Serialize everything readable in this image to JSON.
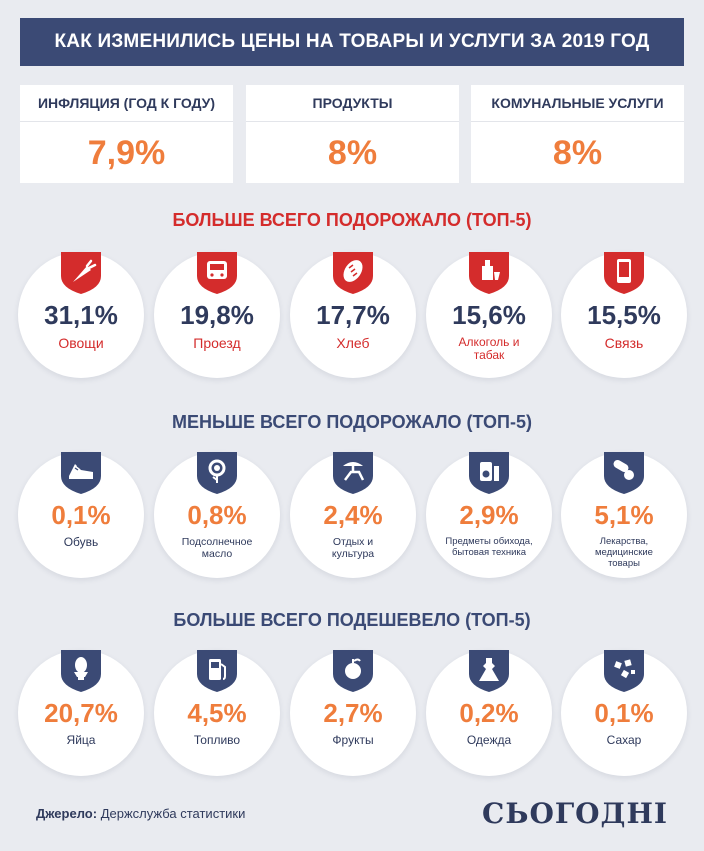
{
  "title": "КАК ИЗМЕНИЛИСЬ ЦЕНЫ НА ТОВАРЫ И УСЛУГИ ЗА 2019 ГОД",
  "stats": [
    {
      "label": "ИНФЛЯЦИЯ (ГОД К ГОДУ)",
      "value": "7,9%"
    },
    {
      "label": "ПРОДУКТЫ",
      "value": "8%"
    },
    {
      "label": "КОМУНАЛЬНЫЕ УСЛУГИ",
      "value": "8%"
    }
  ],
  "sections": [
    {
      "heading": "БОЛЬШЕ ВСЕГО ПОДОРОЖАЛО (ТОП-5)",
      "heading_color": "#d42c2c",
      "shield_color": "#d42c2c",
      "items": [
        {
          "value": "31,1%",
          "caption": "Овощи",
          "icon": "carrot-icon"
        },
        {
          "value": "19,8%",
          "caption": "Проезд",
          "icon": "bus-icon"
        },
        {
          "value": "17,7%",
          "caption": "Хлеб",
          "icon": "bread-icon"
        },
        {
          "value": "15,6%",
          "caption": "Алкоголь и табак",
          "icon": "bottle-icon"
        },
        {
          "value": "15,5%",
          "caption": "Связь",
          "icon": "phone-icon"
        }
      ]
    },
    {
      "heading": "МЕНЬШЕ ВСЕГО ПОДОРОЖАЛО (ТОП-5)",
      "heading_color": "#3b4a75",
      "shield_color": "#3b4a75",
      "items": [
        {
          "value": "0,1%",
          "caption": "Обувь",
          "icon": "sneaker-icon"
        },
        {
          "value": "0,8%",
          "caption": "Подсолнечное масло",
          "icon": "sunflower-icon"
        },
        {
          "value": "2,4%",
          "caption": "Отдых и культура",
          "icon": "beach-chair-icon"
        },
        {
          "value": "2,9%",
          "caption": "Предметы обихода, бытовая техника",
          "icon": "appliance-icon"
        },
        {
          "value": "5,1%",
          "caption": "Лекарства, медицинские товары",
          "icon": "pills-icon"
        }
      ]
    },
    {
      "heading": "БОЛЬШЕ ВСЕГО ПОДЕШЕВЕЛО (ТОП-5)",
      "heading_color": "#3b4a75",
      "shield_color": "#3b4a75",
      "items": [
        {
          "value": "20,7%",
          "caption": "Яйца",
          "icon": "egg-icon"
        },
        {
          "value": "4,5%",
          "caption": "Топливо",
          "icon": "fuel-icon"
        },
        {
          "value": "2,7%",
          "caption": "Фрукты",
          "icon": "apple-icon"
        },
        {
          "value": "0,2%",
          "caption": "Одежда",
          "icon": "dress-icon"
        },
        {
          "value": "0,1%",
          "caption": "Сахар",
          "icon": "sugar-icon"
        }
      ]
    }
  ],
  "footer": {
    "source_label": "Джерело:",
    "source_text": "Держслужба статистики",
    "logo": "СЬОГОДНІ"
  },
  "colors": {
    "accent_orange": "#ef7d3c",
    "navy": "#3b4a75",
    "red": "#d42c2c",
    "background": "#e9ebf0"
  }
}
